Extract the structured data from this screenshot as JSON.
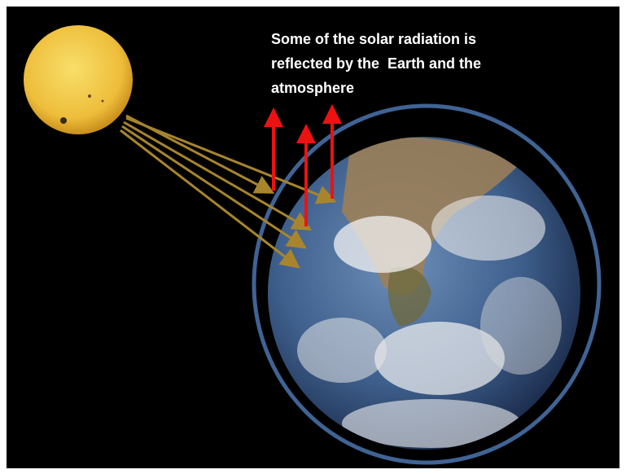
{
  "caption": {
    "lines": [
      "Some of the solar radiation is",
      "reflected by the  Earth and the",
      "atmosphere"
    ]
  }
}
